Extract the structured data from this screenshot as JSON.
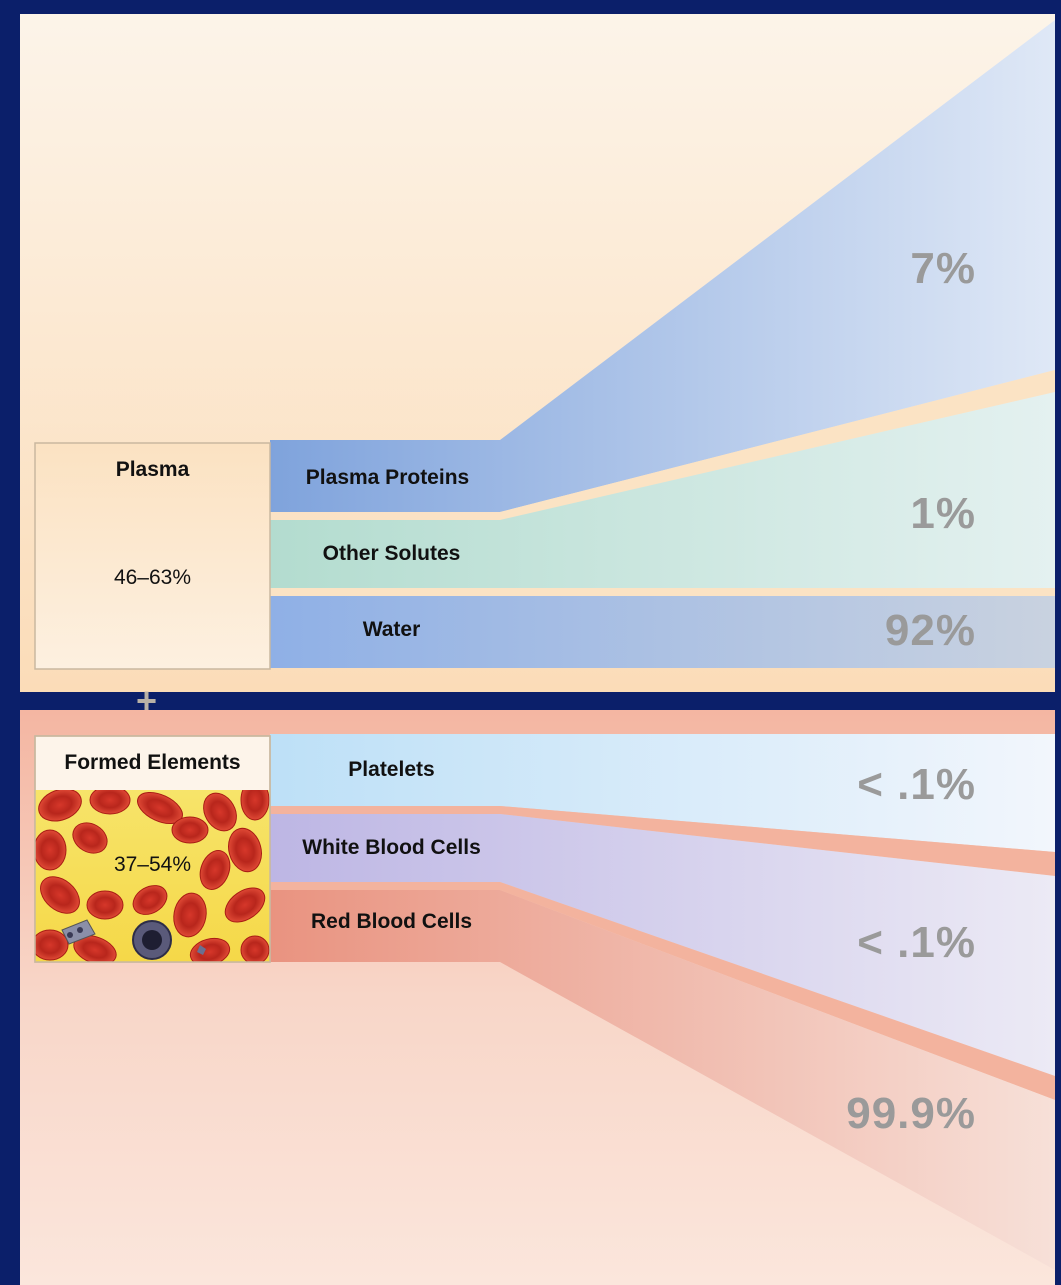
{
  "plasma": {
    "title": "Plasma",
    "percent": "46–63%",
    "components": [
      {
        "label": "Plasma Proteins",
        "percent": "7%"
      },
      {
        "label": "Other Solutes",
        "percent": "1%"
      },
      {
        "label": "Water",
        "percent": "92%"
      }
    ]
  },
  "plus": "+",
  "formed": {
    "title": "Formed Elements",
    "percent": "37–54%",
    "components": [
      {
        "label": "Platelets",
        "percent": "< .1%"
      },
      {
        "label": "White Blood Cells",
        "percent": "< .1%"
      },
      {
        "label": "Red Blood Cells",
        "percent": "99.9%"
      }
    ]
  },
  "colors": {
    "frame": "#0b1f6a",
    "plasma_bg": "#fbe3c4",
    "formed_bg": "#f6cfc2",
    "proteins": "#8fb0e0",
    "solutes": "#bfe0d8",
    "water": "#9fb8e6",
    "platelets": "#bfe0f6",
    "wbc": "#c9c1e6",
    "rbc": "#ea9c8a"
  }
}
